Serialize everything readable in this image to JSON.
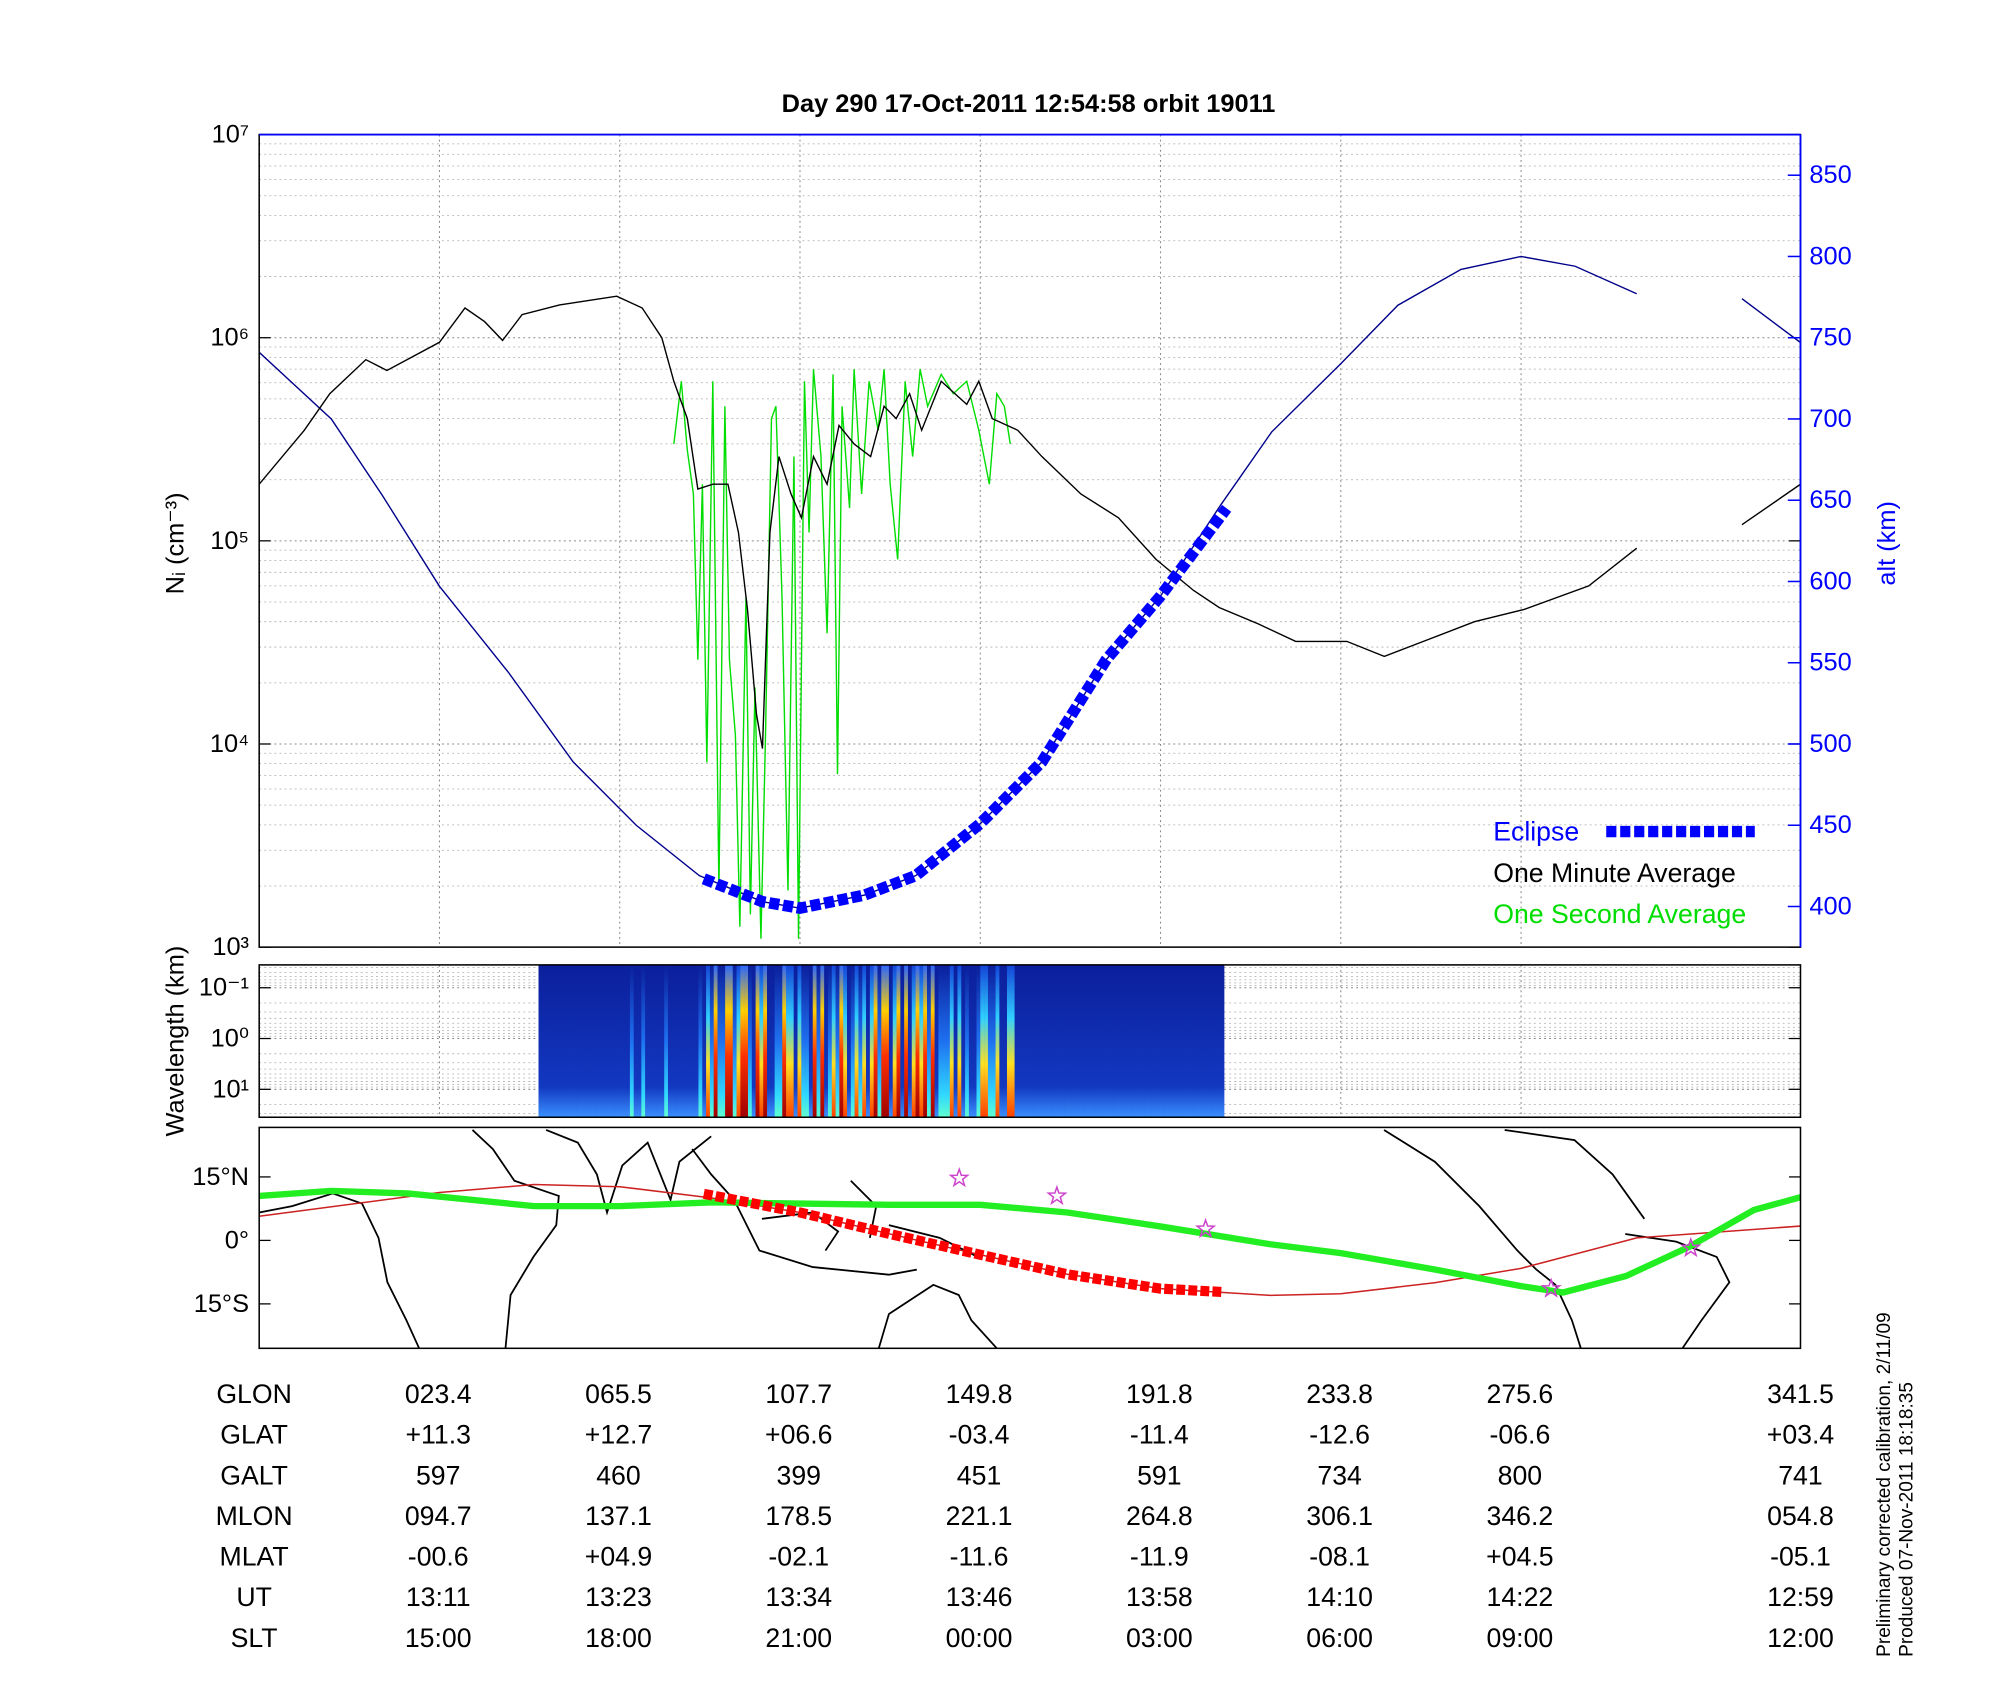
{
  "chart_data": [
    {
      "type": "line",
      "title": "Day 290  17-Oct-2011 12:54:58   orbit 19011",
      "ylabel": "Nᵢ (cm⁻³)",
      "y2label": "alt (km)",
      "log_y": true,
      "grid": true,
      "legend": "lower right",
      "xlim": [
        779,
        881.6
      ],
      "xticks": [
        791,
        803,
        815,
        827,
        839,
        851,
        863
      ],
      "ylim": [
        1000,
        10000000
      ],
      "yticks": [
        {
          "value": 1000,
          "label": "10³"
        },
        {
          "value": 10000,
          "label": "10⁴"
        },
        {
          "value": 100000,
          "label": "10⁵"
        },
        {
          "value": 1000000,
          "label": "10⁶"
        },
        {
          "value": 10000000,
          "label": "10⁷"
        }
      ],
      "y2lim": [
        375,
        875
      ],
      "y2ticks": [
        400,
        450,
        500,
        550,
        600,
        650,
        700,
        750,
        800,
        850
      ],
      "series": [
        {
          "name": "Eclipse",
          "color": "#0000ff",
          "axis": "y2",
          "marker": "square",
          "x": [
            808.6,
            812.5,
            815.0,
            819.3,
            822.7,
            827.0,
            831.1,
            835.4,
            839.0,
            843.4
          ],
          "values": [
            417,
            403,
            399,
            407,
            419,
            451,
            489,
            552,
            591,
            645
          ]
        },
        {
          "name": "One Minute Average",
          "color": "#000000",
          "x": [
            779.0,
            782.0,
            783.7,
            786.1,
            787.5,
            791.0,
            792.7,
            794.0,
            795.2,
            796.5,
            799.0,
            802.8,
            804.5,
            805.8,
            806.6,
            807.5,
            808.2,
            809.2,
            810.2,
            810.9,
            811.5,
            812.1,
            812.5,
            813.0,
            813.6,
            814.4,
            815.1,
            815.9,
            816.8,
            817.6,
            818.6,
            819.7,
            820.6,
            821.4,
            822.3,
            823.1,
            824.4,
            826.1,
            826.9,
            827.8,
            829.5,
            831.1,
            833.7,
            836.2,
            838.7,
            841.2,
            842.9,
            845.5,
            848.0,
            851.4,
            853.9,
            856.5,
            859.9,
            863.2,
            867.5,
            870.7,
            874.2,
            877.7,
            881.6
          ],
          "values": [
            190000,
            350000,
            530000,
            780000,
            690000,
            950000,
            1400000,
            1200000,
            970000,
            1300000,
            1450000,
            1600000,
            1400000,
            1000000,
            610000,
            400000,
            180000,
            190000,
            190000,
            110000,
            46000,
            14000,
            9500,
            110000,
            260000,
            170000,
            130000,
            260000,
            190000,
            370000,
            300000,
            260000,
            460000,
            400000,
            530000,
            350000,
            610000,
            470000,
            610000,
            400000,
            350000,
            260000,
            170000,
            130000,
            81000,
            57000,
            47000,
            39000,
            32000,
            32000,
            27000,
            32000,
            40000,
            46000,
            60000,
            92000,
            null,
            120000,
            190000
          ]
        },
        {
          "name": "One Second Average",
          "color": "#00dd00",
          "x": [
            806.6,
            807.1,
            807.5,
            807.9,
            808.2,
            808.5,
            808.8,
            809.2,
            809.6,
            810.0,
            810.3,
            810.7,
            811.0,
            811.4,
            811.7,
            812.0,
            812.4,
            812.7,
            813.1,
            813.4,
            813.8,
            814.2,
            814.6,
            814.9,
            815.3,
            815.6,
            815.9,
            816.4,
            816.8,
            817.2,
            817.5,
            817.8,
            818.3,
            818.6,
            819.1,
            819.6,
            820.2,
            820.6,
            821.0,
            821.5,
            822.0,
            822.5,
            823.0,
            823.5,
            824.4,
            825.2,
            826.1,
            826.9,
            827.6,
            828.1,
            828.6,
            829.0
          ],
          "values": [
            300000,
            610000,
            280000,
            170000,
            26000,
            190000,
            8100,
            610000,
            1900,
            460000,
            26000,
            11000,
            1260,
            53000,
            1450,
            19000,
            1100,
            11000,
            400000,
            460000,
            53000,
            1900,
            260000,
            1100,
            610000,
            110000,
            700000,
            260000,
            35000,
            660000,
            7100,
            460000,
            145000,
            700000,
            170000,
            610000,
            350000,
            700000,
            190000,
            81000,
            610000,
            260000,
            700000,
            460000,
            660000,
            530000,
            610000,
            350000,
            190000,
            530000,
            460000,
            300000
          ]
        },
        {
          "color": "#00008b",
          "axis": "y2",
          "x": [
            779.0,
            783.8,
            787.2,
            791.0,
            795.6,
            799.9,
            804.1,
            808.3,
            812.5,
            815.0,
            819.3,
            822.7,
            827.0,
            831.1,
            835.4,
            839.0,
            843.0,
            846.4,
            851.0,
            854.8,
            859.0,
            863.0,
            866.6,
            870.7,
            874.2,
            877.7,
            881.6
          ],
          "values": [
            741,
            700,
            653,
            597,
            544,
            489,
            450,
            419,
            403,
            399,
            407,
            419,
            451,
            489,
            552,
            591,
            647,
            692,
            734,
            770,
            792,
            800,
            794,
            777,
            null,
            774,
            747
          ]
        }
      ]
    },
    {
      "type": "spectrogram",
      "ylabel": "Wavelength (km)",
      "log_y": true,
      "grid": true,
      "xlim": [
        779,
        881.6
      ],
      "xticks": [
        791,
        803,
        815,
        827,
        839,
        851,
        863
      ],
      "ylim": [
        35.5,
        0.0355
      ],
      "yticks": [
        {
          "value": 0.1,
          "label": "10⁻¹"
        },
        {
          "value": 1,
          "label": "10⁰"
        },
        {
          "value": 10,
          "label": "10¹"
        }
      ]
    },
    {
      "type": "map",
      "grid": false,
      "xlim": [
        779,
        881.6
      ],
      "ylim": [
        -25.5,
        26.7
      ],
      "yticks": [
        {
          "value": 15,
          "label": "15°N"
        },
        {
          "value": 0,
          "label": "0°"
        },
        {
          "value": -15,
          "label": "15°S"
        }
      ],
      "series": [
        {
          "color": "#cc2222",
          "line": "thin",
          "x": [
            779.0,
            791.0,
            797.3,
            803.0,
            809.2,
            815.0,
            821.0,
            827.0,
            832.8,
            839.0,
            846.3,
            851.0,
            857.3,
            863.0,
            870.7,
            881.6
          ],
          "values": [
            5.7,
            11.3,
            13.2,
            12.7,
            10,
            6.6,
            1.5,
            -3.4,
            -8,
            -11.4,
            -13,
            -12.6,
            -10,
            -6.6,
            0.6,
            3.4
          ]
        },
        {
          "color": "#22ee22",
          "line": "thick",
          "x": [
            779.0,
            783.8,
            788.9,
            797.3,
            803.0,
            809.2,
            815.0,
            821.0,
            827.0,
            832.8,
            839.0,
            846.3,
            851.0,
            857.3,
            863.0,
            865.8,
            870.0,
            874.2,
            878.5,
            881.6
          ],
          "values": [
            10.5,
            11.7,
            11.1,
            8.1,
            8.1,
            9,
            8.7,
            8.4,
            8.4,
            6.6,
            3.3,
            -0.9,
            -3,
            -6.9,
            -10.8,
            -12.3,
            -8.4,
            -1.5,
            7.2,
            10.2
          ]
        },
        {
          "color": "#ff0000",
          "marker": "square",
          "x": [
            808.6,
            815.0,
            821.0,
            827.0,
            832.8,
            839.0,
            843.2
          ],
          "values": [
            11.0,
            6.6,
            1.5,
            -3.4,
            -8,
            -11.4,
            -12.2
          ]
        },
        {
          "color": "#cc44cc",
          "marker": "star",
          "x": [
            825.6,
            832.1,
            842.0,
            865.0,
            874.3
          ],
          "values": [
            14.7,
            10.5,
            2.7,
            -11.4,
            -1.8
          ]
        }
      ]
    }
  ],
  "table": {
    "rows": [
      [
        "GLON",
        "023.4",
        "065.5",
        "107.7",
        "149.8",
        "191.8",
        "233.8",
        "275.6",
        "341.5"
      ],
      [
        "GLAT",
        "+11.3",
        "+12.7",
        "+06.6",
        "-03.4",
        "-11.4",
        "-12.6",
        "-06.6",
        "+03.4"
      ],
      [
        "GALT",
        "597",
        "460",
        "399",
        "451",
        "591",
        "734",
        "800",
        "741"
      ],
      [
        "MLON",
        "094.7",
        "137.1",
        "178.5",
        "221.1",
        "264.8",
        "306.1",
        "346.2",
        "054.8"
      ],
      [
        "MLAT",
        "-00.6",
        "+04.9",
        "-02.1",
        "-11.6",
        "-11.9",
        "-08.1",
        "+04.5",
        "-05.1"
      ],
      [
        "UT",
        "13:11",
        "13:23",
        "13:34",
        "13:46",
        "13:58",
        "14:10",
        "14:22",
        "12:59"
      ],
      [
        "SLT",
        "15:00",
        "18:00",
        "21:00",
        "00:00",
        "03:00",
        "06:00",
        "09:00",
        "12:00"
      ]
    ]
  },
  "notes": [
    "Preliminary corrected calibration, 2/11/09",
    "Produced 07-Nov-2011 18:18:35"
  ]
}
